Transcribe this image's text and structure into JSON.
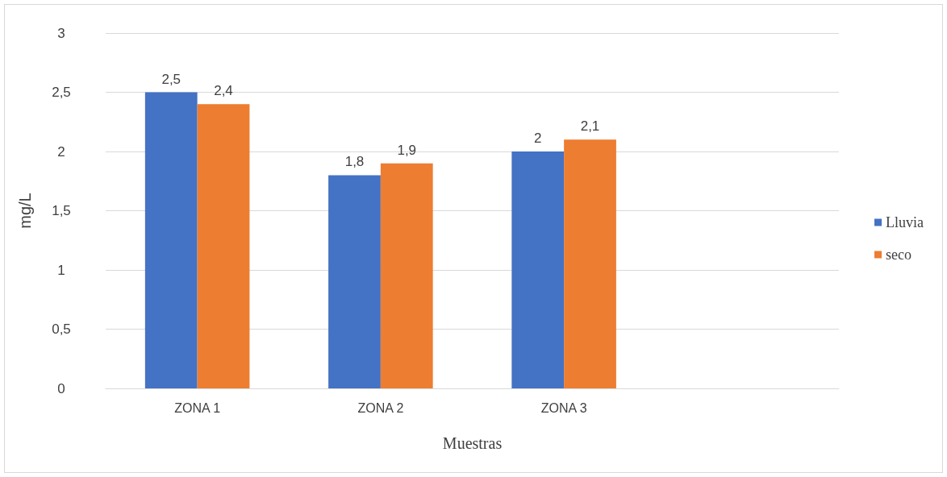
{
  "chart_data": {
    "type": "bar",
    "xlabel": "Muestras",
    "ylabel": "mg/L",
    "categories": [
      "ZONA 1",
      "ZONA 2",
      "ZONA 3",
      null
    ],
    "series": [
      {
        "name": "Lluvia",
        "color": "#4472c4",
        "values": [
          2.5,
          1.8,
          2.0,
          null
        ],
        "value_labels": [
          "2,5",
          "1,8",
          "2",
          null
        ]
      },
      {
        "name": "seco",
        "color": "#ed7d31",
        "values": [
          2.4,
          1.9,
          2.1,
          null
        ],
        "value_labels": [
          "2,4",
          "1,9",
          "2,1",
          null
        ]
      }
    ],
    "ylim": [
      0,
      3
    ],
    "yticks": [
      0,
      {
        "value": 0.5,
        "label": "0,5"
      },
      1,
      {
        "value": 1.5,
        "label": "1,5"
      },
      2,
      {
        "value": 2.5,
        "label": "2,5"
      },
      3
    ],
    "grid": "y",
    "legend": "right"
  }
}
